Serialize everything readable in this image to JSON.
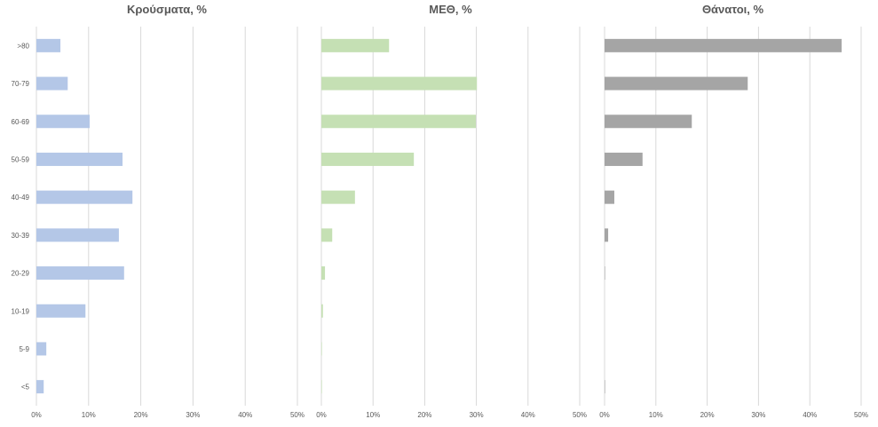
{
  "chart_data": [
    {
      "type": "bar",
      "orientation": "horizontal",
      "title": "Κρούσματα, %",
      "categories": [
        ">80",
        "70-79",
        "60-69",
        "50-59",
        "40-49",
        "30-39",
        "20-29",
        "10-19",
        "5-9",
        "<5"
      ],
      "values": [
        4.6,
        6.0,
        10.2,
        16.5,
        18.4,
        15.8,
        16.8,
        9.4,
        1.9,
        1.4
      ],
      "xlim": [
        0,
        50
      ],
      "xticks": [
        "0%",
        "10%",
        "20%",
        "30%",
        "40%",
        "50%"
      ],
      "grid": true,
      "color": "#b4c7e7"
    },
    {
      "type": "bar",
      "orientation": "horizontal",
      "title": "ΜΕΘ, %",
      "categories": [
        ">80",
        "70-79",
        "60-69",
        "50-59",
        "40-49",
        "30-39",
        "20-29",
        "10-19",
        "5-9",
        "<5"
      ],
      "values": [
        13.1,
        30.1,
        29.9,
        17.9,
        6.5,
        2.1,
        0.7,
        0.3,
        0.1,
        0.1
      ],
      "xlim": [
        0,
        50
      ],
      "xticks": [
        "0%",
        "10%",
        "20%",
        "30%",
        "40%",
        "50%"
      ],
      "grid": true,
      "color": "#c5e0b4"
    },
    {
      "type": "bar",
      "orientation": "horizontal",
      "title": "Θάνατοι, %",
      "categories": [
        ">80",
        "70-79",
        "60-69",
        "50-59",
        "40-49",
        "30-39",
        "20-29",
        "10-19",
        "5-9",
        "<5"
      ],
      "values": [
        46.2,
        27.9,
        17.0,
        7.4,
        1.9,
        0.7,
        0.1,
        0.0,
        0.0,
        0.1
      ],
      "xlim": [
        0,
        50
      ],
      "xticks": [
        "0%",
        "10%",
        "20%",
        "30%",
        "40%",
        "50%"
      ],
      "grid": true,
      "color": "#a5a5a5"
    }
  ]
}
